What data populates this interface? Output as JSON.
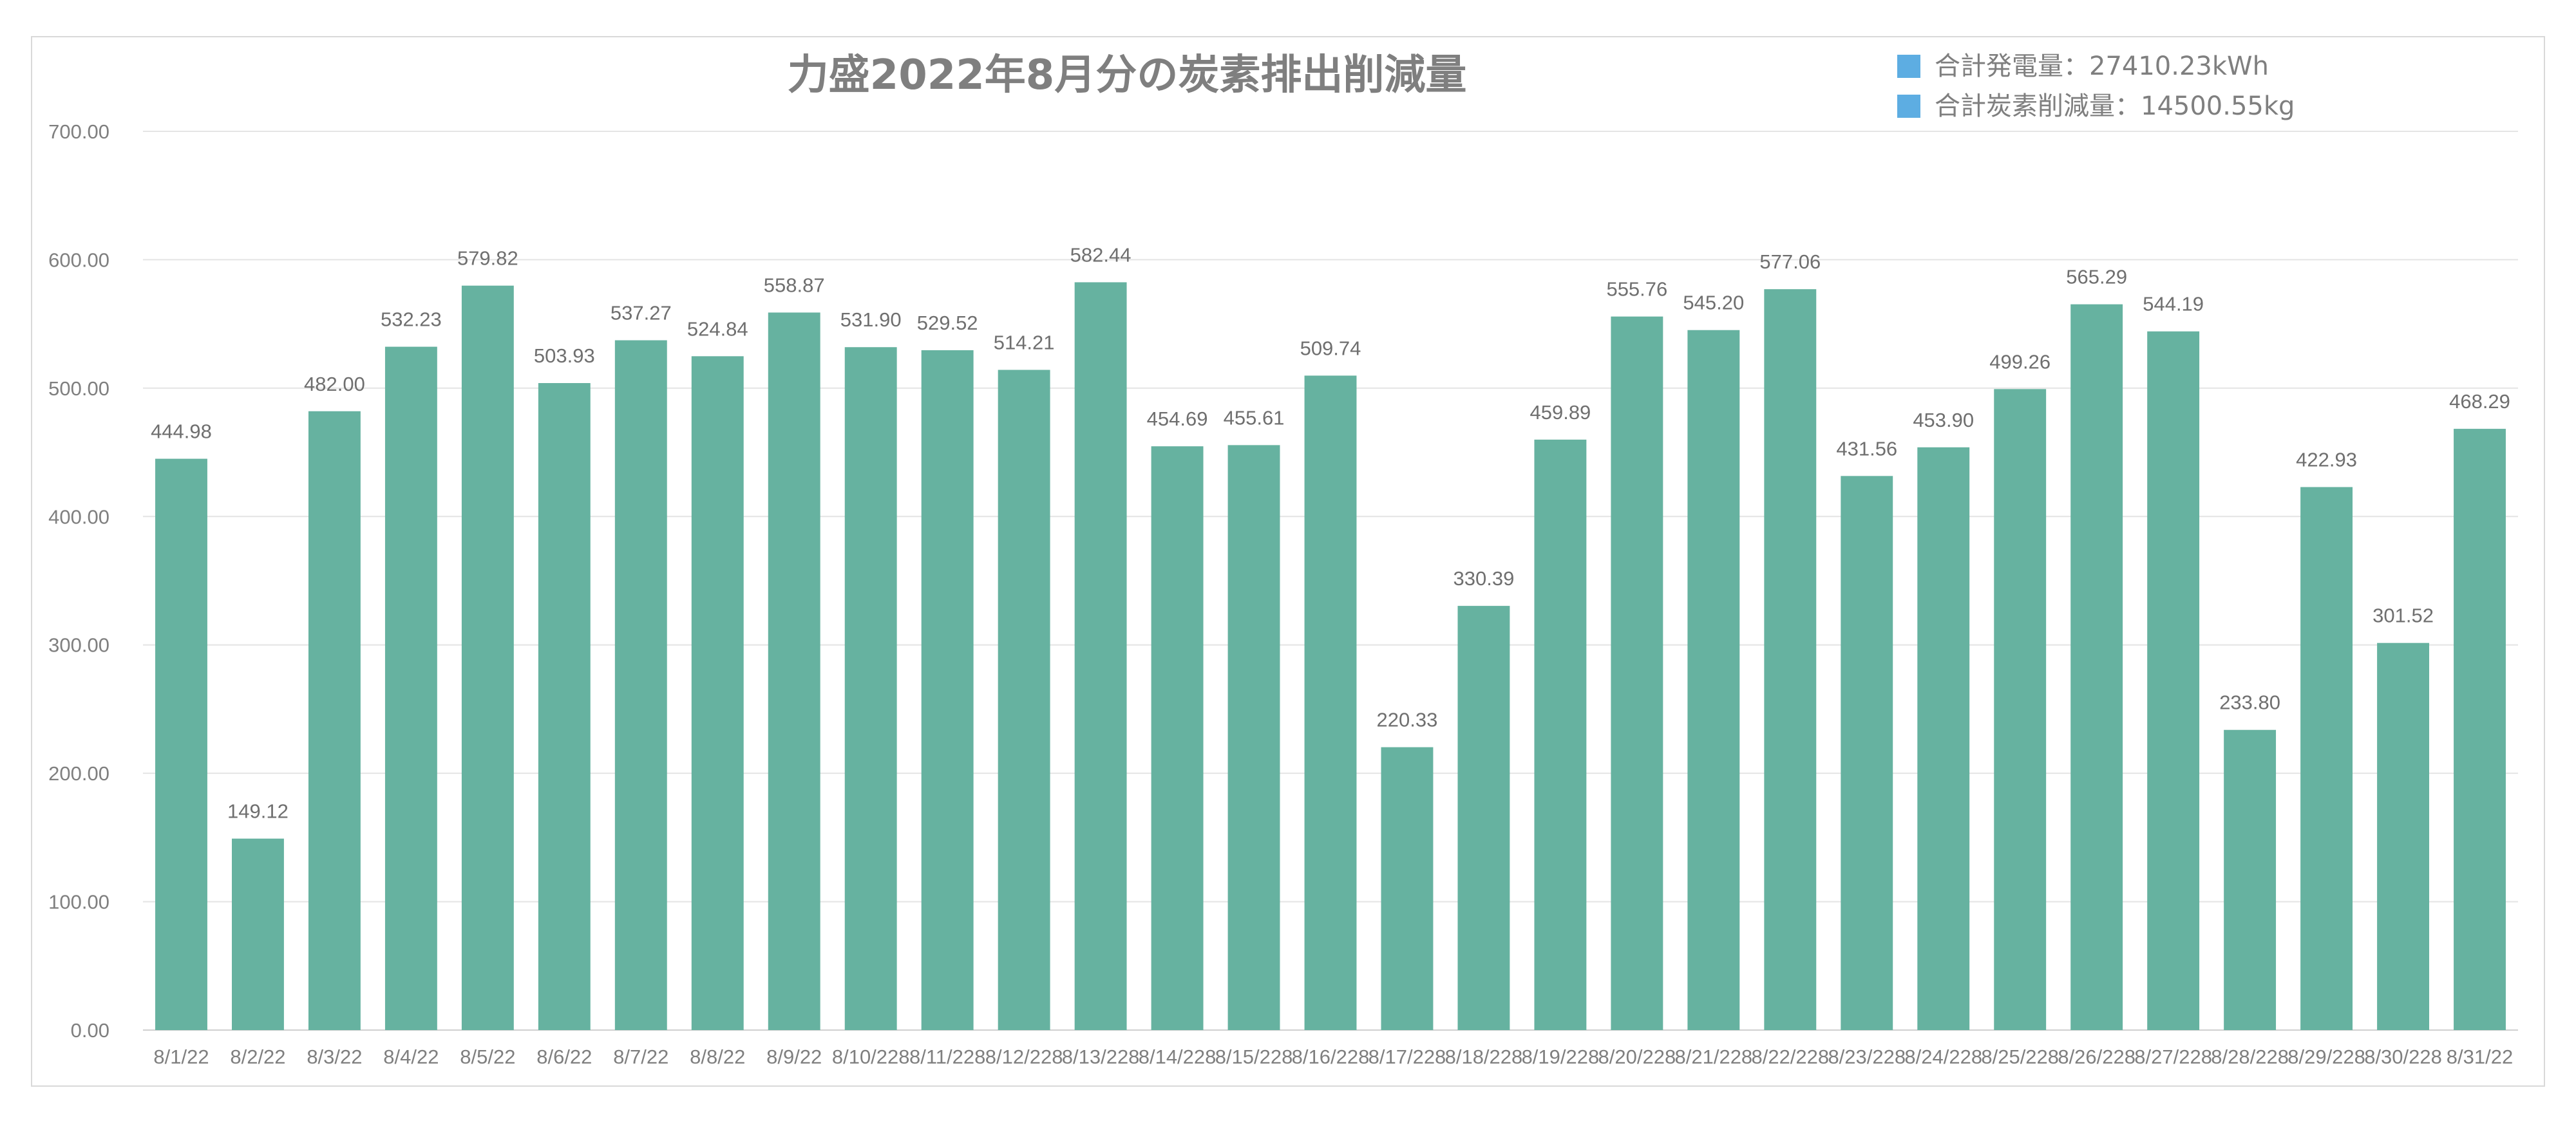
{
  "chart_data": {
    "type": "bar",
    "title": "力盛2022年8月分の炭素排出削減量",
    "legend": [
      {
        "label": "合計発電量：27410.23kWh",
        "color": "#5DADE2"
      },
      {
        "label": "合計炭素削減量：14500.55kg",
        "color": "#5DADE2"
      }
    ],
    "legend_position": "top-right",
    "bar_color": "#66B2A0",
    "grid": true,
    "ylim": [
      0,
      700
    ],
    "yticks": [
      "0.00",
      "100.00",
      "200.00",
      "300.00",
      "400.00",
      "500.00",
      "600.00",
      "700.00"
    ],
    "ytick_values": [
      0,
      100,
      200,
      300,
      400,
      500,
      600,
      700
    ],
    "categories": [
      "8/1/22",
      "8/2/22",
      "8/3/22",
      "8/4/22",
      "8/5/22",
      "8/6/22",
      "8/7/22",
      "8/8/22",
      "8/9/22",
      "8/10/228",
      "8/11/228",
      "8/12/228",
      "8/13/228",
      "8/14/228",
      "8/15/228",
      "8/16/228",
      "8/17/228",
      "8/18/228",
      "8/19/228",
      "8/20/228",
      "8/21/228",
      "8/22/228",
      "8/23/228",
      "8/24/228",
      "8/25/228",
      "8/26/228",
      "8/27/228",
      "8/28/228",
      "8/29/228",
      "8/30/228",
      "8/31/22"
    ],
    "values": [
      444.98,
      149.12,
      482.0,
      532.23,
      579.82,
      503.93,
      537.27,
      524.84,
      558.87,
      531.9,
      529.52,
      514.21,
      582.44,
      454.69,
      455.61,
      509.74,
      220.33,
      330.39,
      459.89,
      555.76,
      545.2,
      577.06,
      431.56,
      453.9,
      499.26,
      565.29,
      544.19,
      233.8,
      422.93,
      301.52,
      468.29
    ],
    "value_labels": [
      "444.98",
      "149.12",
      "482.00",
      "532.23",
      "579.82",
      "503.93",
      "537.27",
      "524.84",
      "558.87",
      "531.90",
      "529.52",
      "514.21",
      "582.44",
      "454.69",
      "455.61",
      "509.74",
      "220.33",
      "330.39",
      "459.89",
      "555.76",
      "545.20",
      "577.06",
      "431.56",
      "453.90",
      "499.26",
      "565.29",
      "544.19",
      "233.80",
      "422.93",
      "301.52",
      "468.29"
    ]
  }
}
